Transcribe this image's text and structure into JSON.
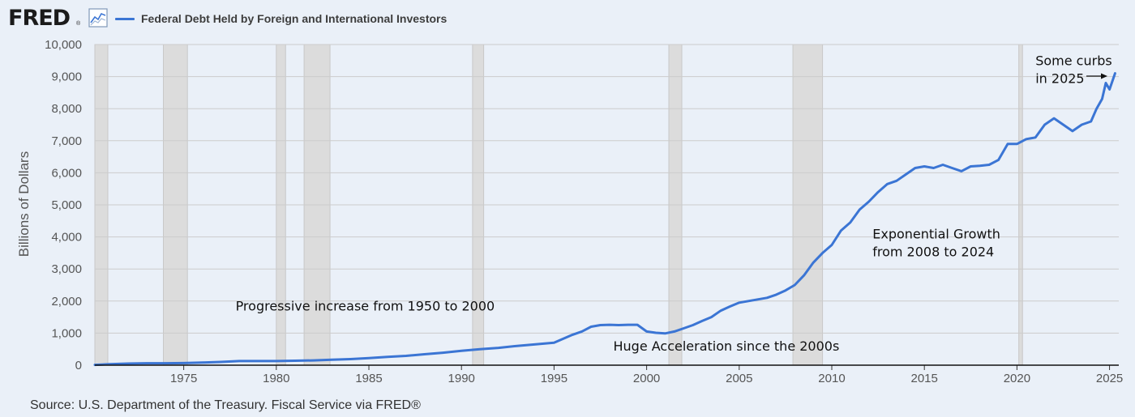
{
  "header": {
    "logo_text": "FRED",
    "logo_reg": "®",
    "logo_icon": "line-graph-icon",
    "legend_label": "Federal Debt Held by Foreign and International Investors"
  },
  "source": "Source: U.S. Department of the Treasury. Fiscal Service via FRED®",
  "colors": {
    "series": "#3b75d4",
    "recession": "#dcdcdc",
    "background": "#eaf0f8",
    "grid": "#cccccc"
  },
  "chart_data": {
    "type": "line",
    "title": "",
    "xlabel": "",
    "ylabel": "Billions of Dollars",
    "xlim": [
      1970.2,
      2025.5
    ],
    "ylim": [
      0,
      10000
    ],
    "x_ticks": [
      "1975",
      "1980",
      "1985",
      "1990",
      "1995",
      "2000",
      "2005",
      "2010",
      "2015",
      "2020",
      "2025"
    ],
    "y_ticks": [
      "0",
      "1,000",
      "2,000",
      "3,000",
      "4,000",
      "5,000",
      "6,000",
      "7,000",
      "8,000",
      "9,000",
      "10,000"
    ],
    "grid": true,
    "legend": "top-left",
    "recessions": [
      [
        1970.0,
        1970.9
      ],
      [
        1973.9,
        1975.2
      ],
      [
        1980.0,
        1980.5
      ],
      [
        1981.5,
        1982.9
      ],
      [
        1990.6,
        1991.2
      ],
      [
        2001.2,
        2001.9
      ],
      [
        2007.9,
        2009.5
      ],
      [
        2020.1,
        2020.3
      ]
    ],
    "series": [
      {
        "x": [
          1970.2,
          1971,
          1972,
          1973,
          1974,
          1975,
          1976,
          1977,
          1978,
          1979,
          1980,
          1981,
          1982,
          1983,
          1984,
          1985,
          1986,
          1987,
          1988,
          1989,
          1990,
          1991,
          1992,
          1993,
          1994,
          1995,
          1996,
          1996.5,
          1997,
          1997.5,
          1998,
          1998.5,
          1999,
          1999.5,
          2000,
          2000.5,
          2001,
          2001.5,
          2002,
          2002.5,
          2003,
          2003.5,
          2004,
          2004.5,
          2005,
          2005.5,
          2006,
          2006.5,
          2007,
          2007.5,
          2008,
          2008.5,
          2009,
          2009.5,
          2010,
          2010.5,
          2011,
          2011.5,
          2012,
          2012.5,
          2013,
          2013.5,
          2014,
          2014.5,
          2015,
          2015.5,
          2016,
          2016.5,
          2017,
          2017.5,
          2018,
          2018.5,
          2019,
          2019.5,
          2020,
          2020.5,
          2021,
          2021.5,
          2022,
          2022.5,
          2023,
          2023.5,
          2024,
          2024.3,
          2024.6,
          2024.8,
          2025,
          2025.3
        ],
        "y": [
          10,
          30,
          50,
          60,
          60,
          65,
          80,
          100,
          130,
          130,
          130,
          140,
          150,
          170,
          190,
          220,
          260,
          290,
          340,
          390,
          450,
          500,
          540,
          600,
          650,
          700,
          950,
          1050,
          1200,
          1250,
          1260,
          1250,
          1260,
          1260,
          1050,
          1010,
          990,
          1050,
          1150,
          1250,
          1380,
          1500,
          1700,
          1830,
          1950,
          2000,
          2050,
          2100,
          2200,
          2330,
          2500,
          2800,
          3200,
          3500,
          3750,
          4200,
          4450,
          4850,
          5100,
          5400,
          5650,
          5750,
          5950,
          6150,
          6200,
          6150,
          6250,
          6150,
          6050,
          6200,
          6220,
          6250,
          6400,
          6900,
          6900,
          7050,
          7100,
          7500,
          7700,
          7500,
          7300,
          7500,
          7600,
          8000,
          8300,
          8800,
          8600,
          9100
        ]
      }
    ],
    "annotations": [
      {
        "text": "Progressive increase from 1950 to 2000",
        "x": 1977.8,
        "y": 1700
      },
      {
        "text": "Huge Acceleration since the 2000s",
        "x": 1998.2,
        "y": 450
      },
      {
        "text": "Exponential Growth",
        "x": 2012.2,
        "y": 3950
      },
      {
        "text": "from 2008 to 2024",
        "x": 2012.2,
        "y": 3400
      },
      {
        "text": "Some curbs",
        "x": 2021.0,
        "y": 9350
      },
      {
        "text": "in 2025",
        "x": 2021.0,
        "y": 8800
      }
    ]
  }
}
